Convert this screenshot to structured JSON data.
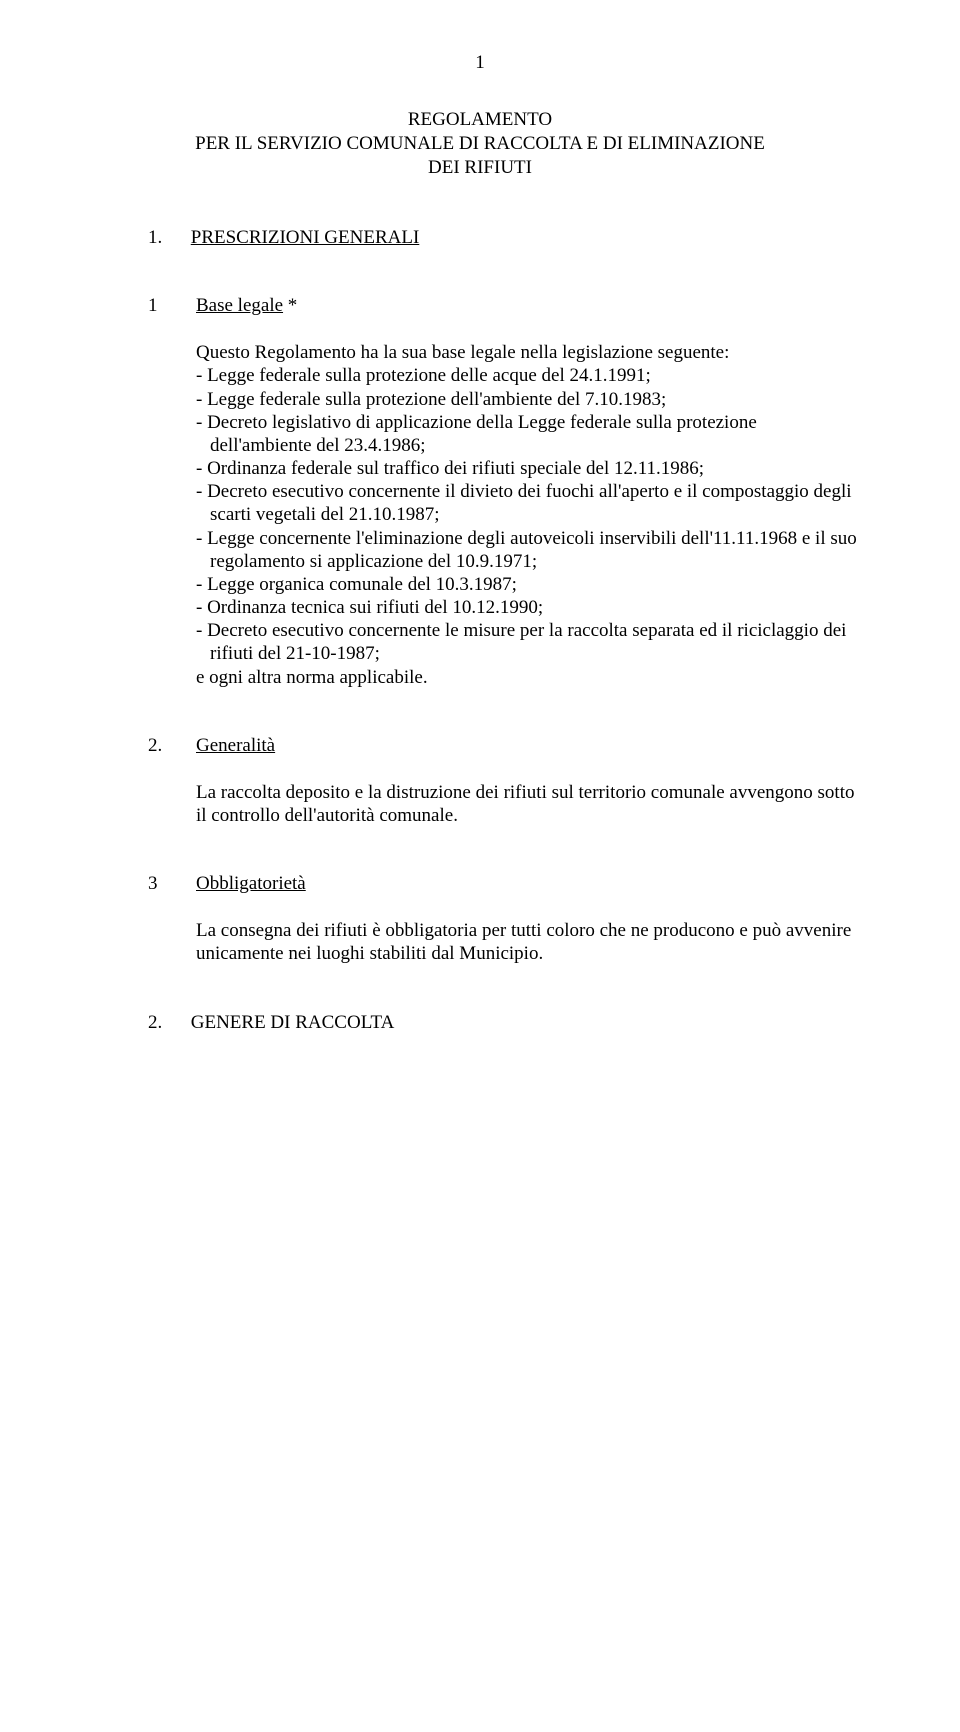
{
  "page_number": "1",
  "title_line1": "REGOLAMENTO",
  "title_line2": "PER IL SERVIZIO COMUNALE DI RACCOLTA E DI ELIMINAZIONE",
  "title_line3": "DEI RIFIUTI",
  "section1": {
    "num": "1.",
    "label": "PRESCRIZIONI GENERALI"
  },
  "article1": {
    "num": "1",
    "title": "Base legale",
    "marker": " *",
    "intro": "Questo Regolamento ha la sua base legale nella legislazione seguente:",
    "items": [
      "- Legge federale sulla protezione delle acque del 24.1.1991;",
      "- Legge federale sulla protezione dell'ambiente del 7.10.1983;",
      "- Decreto legislativo di applicazione della Legge federale sulla protezione dell'ambiente del 23.4.1986;",
      "- Ordinanza federale sul traffico dei rifiuti speciale del 12.11.1986;",
      "- Decreto esecutivo concernente il divieto dei fuochi all'aperto e il compostaggio degli scarti vegetali del 21.10.1987;",
      "- Legge concernente l'eliminazione degli autoveicoli inservibili dell'11.11.1968 e il suo regolamento si applicazione del 10.9.1971;",
      "- Legge organica comunale del 10.3.1987;",
      "- Ordinanza tecnica sui rifiuti del 10.12.1990;",
      "- Decreto esecutivo concernente le misure per la raccolta separata ed il riciclaggio dei rifiuti del 21-10-1987;"
    ],
    "closing": "e ogni altra norma applicabile."
  },
  "article2": {
    "num": "2.",
    "title": "Generalità",
    "body": "La raccolta deposito e la distruzione dei rifiuti sul territorio comunale avvengono sotto il controllo dell'autorità comunale."
  },
  "article3": {
    "num": "3",
    "title": "Obbligatorietà",
    "body": "La consegna dei rifiuti è obbligatoria per tutti coloro che ne producono e può avvenire unicamente nei luoghi stabiliti dal Municipio."
  },
  "section2": {
    "num": "2.",
    "label": "GENERE DI RACCOLTA"
  }
}
